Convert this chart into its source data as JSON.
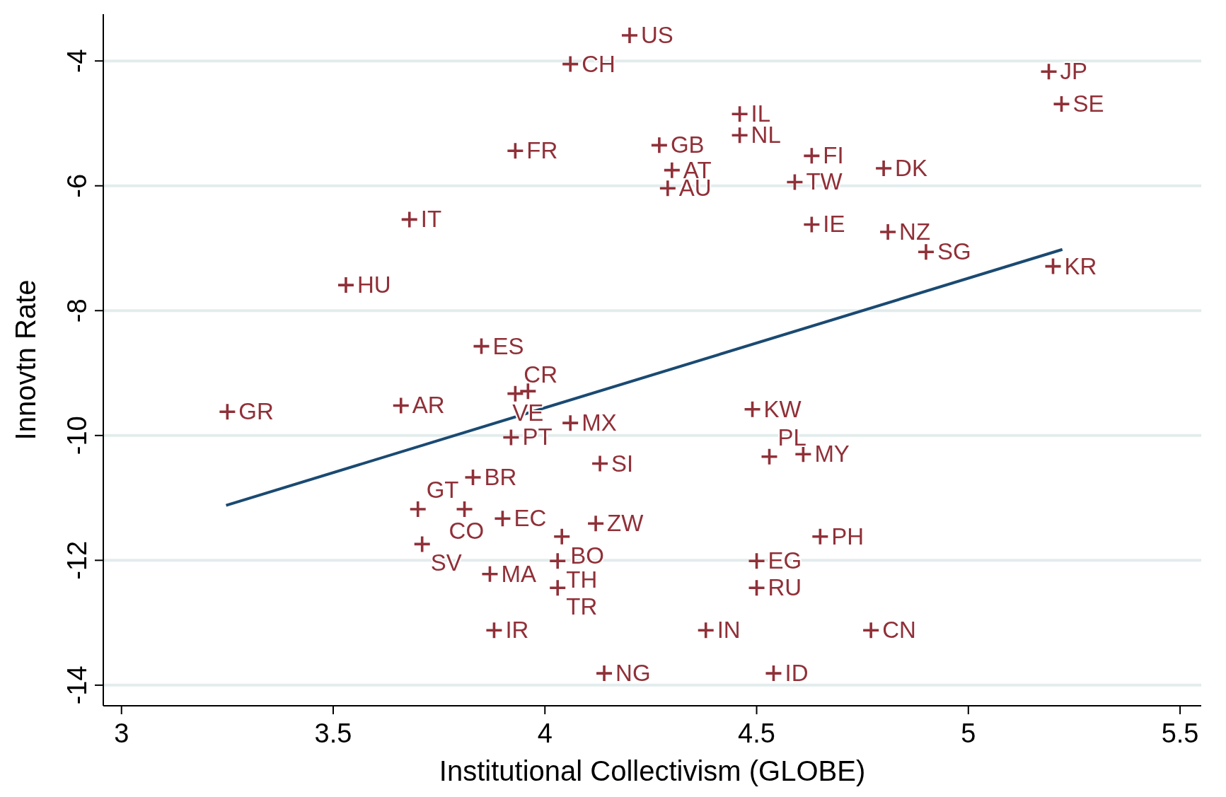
{
  "chart_data": {
    "type": "scatter",
    "xlabel": "Institutional Collectivism (GLOBE)",
    "ylabel": "Innovtn Rate",
    "xlim": [
      2.957,
      5.55
    ],
    "ylim": [
      -14.33,
      -3.25
    ],
    "xticks": [
      3,
      3.5,
      4,
      4.5,
      5,
      5.5
    ],
    "yticks": [
      -14,
      -12,
      -10,
      -8,
      -6,
      -4
    ],
    "grid": "y",
    "series": [
      {
        "color": "#903038",
        "marker": "cross",
        "x": [
          4.2,
          4.06,
          5.19,
          5.22,
          4.46,
          4.46,
          3.93,
          4.27,
          4.63,
          4.3,
          4.8,
          4.59,
          4.29,
          3.68,
          4.63,
          4.81,
          4.9,
          5.2,
          3.53,
          3.85,
          3.93,
          3.96,
          3.25,
          3.66,
          4.49,
          4.06,
          3.92,
          4.13,
          4.53,
          4.61,
          3.83,
          3.7,
          3.81,
          3.9,
          4.12,
          4.04,
          4.65,
          3.71,
          4.03,
          4.5,
          3.87,
          4.03,
          4.5,
          3.88,
          4.38,
          4.77,
          4.14,
          4.54
        ],
        "values": [
          -3.59,
          -4.05,
          -4.17,
          -4.69,
          -4.85,
          -5.19,
          -5.44,
          -5.35,
          -5.52,
          -5.75,
          -5.72,
          -5.94,
          -6.04,
          -6.54,
          -6.62,
          -6.74,
          -7.06,
          -7.29,
          -7.59,
          -8.57,
          -9.33,
          -9.29,
          -9.62,
          -9.52,
          -9.58,
          -9.8,
          -10.03,
          -10.45,
          -10.34,
          -10.3,
          -10.67,
          -11.18,
          -11.18,
          -11.33,
          -11.41,
          -11.62,
          -11.62,
          -11.74,
          -12.01,
          -12.01,
          -12.22,
          -12.44,
          -12.44,
          -13.12,
          -13.12,
          -13.12,
          -13.81,
          -13.81
        ],
        "value_labels": [
          "US",
          "CH",
          "JP",
          "SE",
          "IL",
          "NL",
          "FR",
          "GB",
          "FI",
          "AT",
          "DK",
          "TW",
          "AU",
          "IT",
          "IE",
          "NZ",
          "SG",
          "KR",
          "HU",
          "ES",
          "CR",
          "VE",
          "GR",
          "AR",
          "KW",
          "MX",
          "PT",
          "SI",
          "PL",
          "MY",
          "BR",
          "GT",
          "CO",
          "EC",
          "ZW",
          "BO",
          "PH",
          "SV",
          "TH",
          "EG",
          "MA",
          "TR",
          "RU",
          "IR",
          "IN",
          "CN",
          "NG",
          "ID"
        ]
      },
      {
        "type": "line",
        "color": "#1a4a72",
        "x": [
          3.247,
          5.222
        ],
        "values": [
          -11.12,
          -7.02
        ]
      }
    ]
  }
}
